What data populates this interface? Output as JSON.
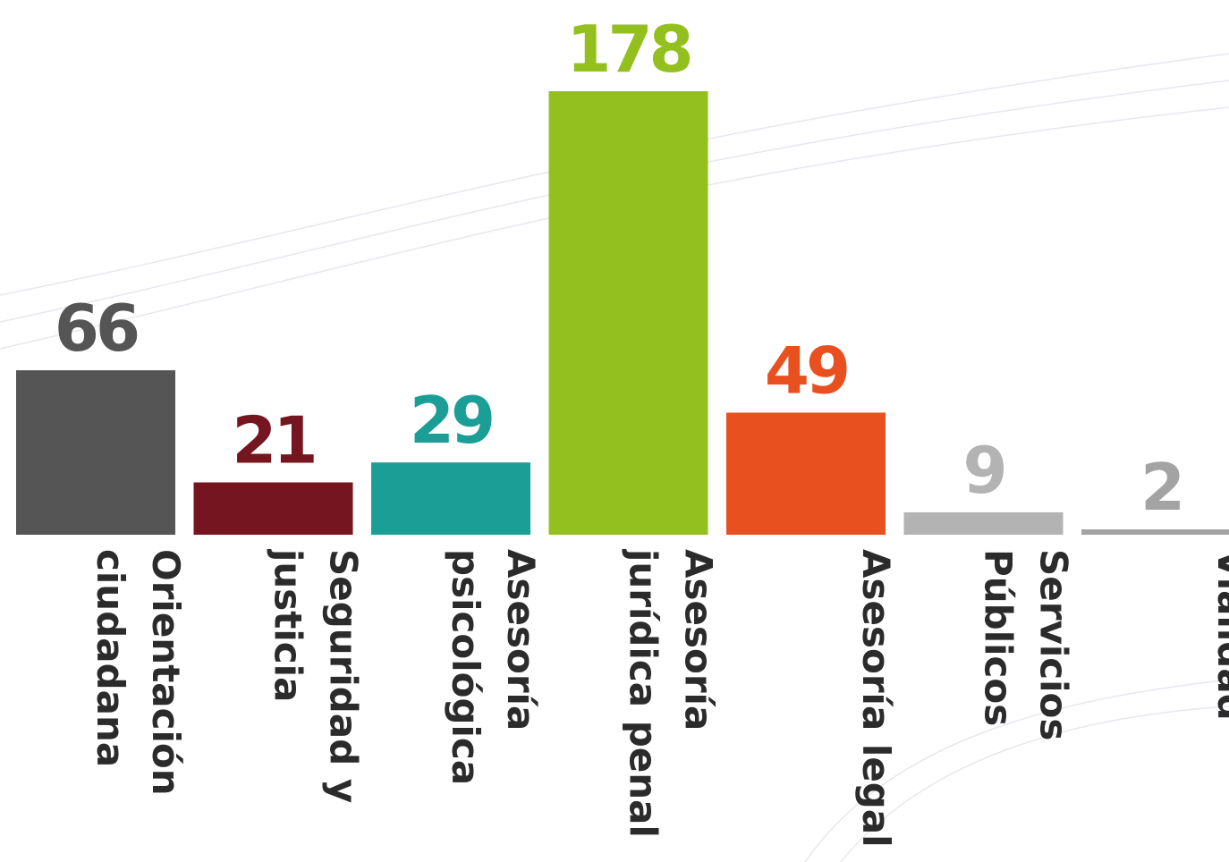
{
  "chart_data": {
    "type": "bar",
    "categories": [
      "Orientación ciudadana",
      "Seguridad y justicia",
      "Asesoría psicológica",
      "Asesoría jurídica penal",
      "Asesoría legal",
      "Servicios Públicos",
      "Vialidad"
    ],
    "values": [
      66,
      21,
      29,
      178,
      49,
      9,
      2
    ],
    "colors": [
      "#555555",
      "#74151f",
      "#1a9e96",
      "#93c01f",
      "#e8501f",
      "#b3b3b3",
      "#a3a3a3"
    ]
  }
}
